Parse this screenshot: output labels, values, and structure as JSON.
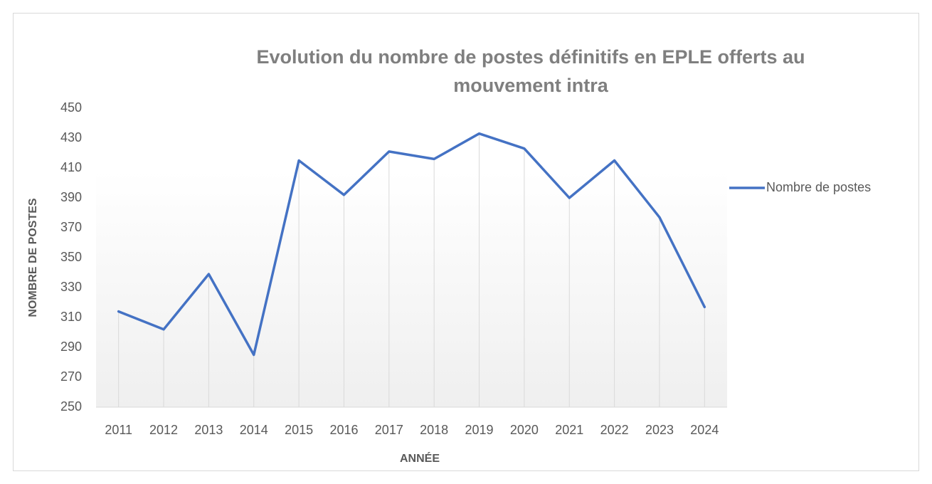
{
  "chart_data": {
    "type": "line",
    "title": "Evolution du nombre de postes définitifs en EPLE offerts au mouvement intra",
    "x_label": "ANNÉE",
    "y_label": "NOMBRE DE POSTES",
    "categories": [
      "2011",
      "2012",
      "2013",
      "2014",
      "2015",
      "2016",
      "2017",
      "2018",
      "2019",
      "2020",
      "2021",
      "2022",
      "2023",
      "2024"
    ],
    "series": [
      {
        "name": "Nombre de postes",
        "color": "#4472c4",
        "values": [
          314,
          302,
          339,
          285,
          415,
          392,
          421,
          416,
          433,
          423,
          390,
          415,
          377,
          317
        ]
      }
    ],
    "ylim": [
      250,
      450
    ],
    "yticks": [
      250,
      270,
      290,
      310,
      330,
      350,
      370,
      390,
      410,
      430,
      450
    ],
    "drop_lines": true,
    "legend": "right"
  }
}
